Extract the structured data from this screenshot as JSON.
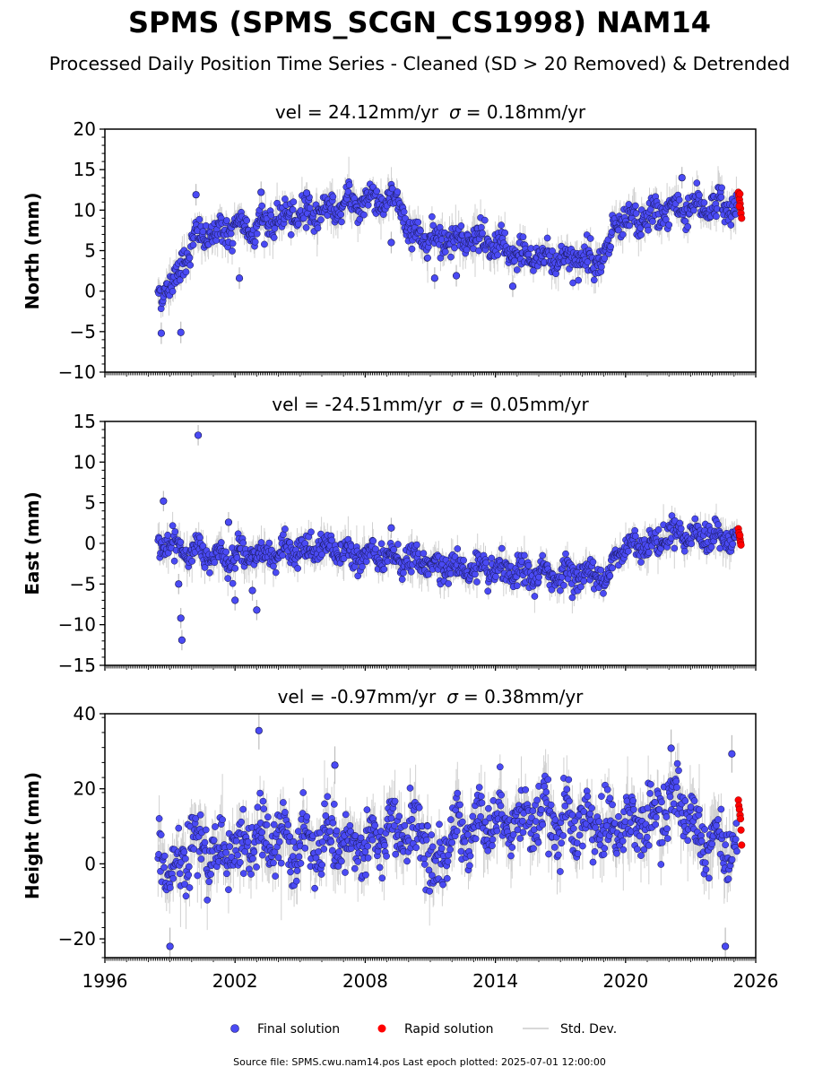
{
  "title": "SPMS (SPMS_SCGN_CS1998) NAM14",
  "subtitle": "Processed Daily Position Time Series - Cleaned (SD > 20 Removed) & Detrended",
  "legend": {
    "final": "Final solution",
    "rapid": "Rapid solution",
    "std": "Std. Dev."
  },
  "footer": "Source file: SPMS.cwu.nam14.pos  Last epoch plotted: 2025-07-01 12:00:00",
  "colors": {
    "final": "#4a4af4",
    "rapid": "#ff0000",
    "std": "#bdbdbd",
    "axis": "#000000"
  },
  "chart_data": [
    {
      "type": "scatter",
      "id": "north",
      "title_prefix": "vel = 24.12mm/yr",
      "sigma_text": "= 0.18mm/yr",
      "ylabel": "North (mm)",
      "xlim": [
        1996,
        2026
      ],
      "ylim": [
        -10,
        20
      ],
      "yticks": [
        -10,
        -5,
        0,
        5,
        10,
        15,
        20
      ],
      "xticks": [
        1996,
        2002,
        2008,
        2014,
        2020,
        2026
      ],
      "show_xticklabels": false,
      "final_series_keypoints": [
        [
          1998.5,
          0
        ],
        [
          1999.2,
          1
        ],
        [
          1999.6,
          4
        ],
        [
          2000.2,
          6.5
        ],
        [
          2001.5,
          7.5
        ],
        [
          2003,
          8
        ],
        [
          2005,
          9.5
        ],
        [
          2007,
          10.5
        ],
        [
          2008.5,
          11.5
        ],
        [
          2009.8,
          10.5
        ],
        [
          2009.9,
          7
        ],
        [
          2011.5,
          6.5
        ],
        [
          2013,
          6.5
        ],
        [
          2014,
          5.5
        ],
        [
          2015,
          4.5
        ],
        [
          2017,
          4
        ],
        [
          2019,
          4
        ],
        [
          2019.3,
          5
        ],
        [
          2019.4,
          8
        ],
        [
          2021,
          9
        ],
        [
          2022,
          10
        ],
        [
          2023,
          10.5
        ],
        [
          2025,
          10.5
        ]
      ],
      "rapid_points": [
        [
          2025.2,
          12.2
        ],
        [
          2025.22,
          11.8
        ],
        [
          2025.25,
          11.3
        ],
        [
          2025.28,
          10.8
        ],
        [
          2025.3,
          10.2
        ],
        [
          2025.32,
          9.6
        ],
        [
          2025.35,
          9.0
        ],
        [
          2025.27,
          12.0
        ],
        [
          2025.24,
          10.5
        ]
      ],
      "notable_points": [
        [
          1998.6,
          -5.2
        ],
        [
          1999.5,
          -5.1
        ],
        [
          2000.2,
          11.9
        ],
        [
          2002.2,
          1.6
        ],
        [
          2003.2,
          12.2
        ],
        [
          2005.3,
          12.1
        ],
        [
          2009.2,
          6.0
        ],
        [
          2011.2,
          1.6
        ],
        [
          2012.2,
          1.9
        ],
        [
          2014.8,
          0.6
        ],
        [
          2022.6,
          14.0
        ]
      ]
    },
    {
      "type": "scatter",
      "id": "east",
      "title_prefix": "vel = -24.51mm/yr",
      "sigma_text": "= 0.05mm/yr",
      "ylabel": "East (mm)",
      "xlim": [
        1996,
        2026
      ],
      "ylim": [
        -15,
        15
      ],
      "yticks": [
        -15,
        -10,
        -5,
        0,
        5,
        10,
        15
      ],
      "xticks": [
        1996,
        2002,
        2008,
        2014,
        2020,
        2026
      ],
      "show_xticklabels": false,
      "final_series_keypoints": [
        [
          1998.5,
          0
        ],
        [
          2000,
          -1
        ],
        [
          2002,
          -1.5
        ],
        [
          2005,
          -1
        ],
        [
          2006,
          -0.5
        ],
        [
          2008,
          -1.5
        ],
        [
          2010,
          -2
        ],
        [
          2012,
          -3
        ],
        [
          2014,
          -3.5
        ],
        [
          2016,
          -3.8
        ],
        [
          2018,
          -3.8
        ],
        [
          2019.3,
          -4
        ],
        [
          2019.5,
          -1.5
        ],
        [
          2020.5,
          0
        ],
        [
          2021.5,
          0
        ],
        [
          2022,
          1.5
        ],
        [
          2023,
          1
        ],
        [
          2025,
          0.5
        ]
      ],
      "rapid_points": [
        [
          2025.2,
          1.8
        ],
        [
          2025.22,
          1.3
        ],
        [
          2025.25,
          0.9
        ],
        [
          2025.28,
          0.5
        ],
        [
          2025.3,
          0.1
        ],
        [
          2025.32,
          -0.2
        ],
        [
          2025.27,
          1.0
        ]
      ],
      "notable_points": [
        [
          1998.7,
          5.2
        ],
        [
          1999.4,
          -5.0
        ],
        [
          1999.5,
          -9.2
        ],
        [
          1999.55,
          -11.9
        ],
        [
          2000.3,
          13.3
        ],
        [
          2001.7,
          2.6
        ],
        [
          2002.0,
          -7.0
        ],
        [
          2002.8,
          -5.8
        ],
        [
          2003.0,
          -8.2
        ],
        [
          2009.2,
          1.9
        ]
      ]
    },
    {
      "type": "scatter",
      "id": "height",
      "title_prefix": "vel = -0.97mm/yr",
      "sigma_text": "= 0.38mm/yr",
      "ylabel": "Height (mm)",
      "xlim": [
        1996,
        2026
      ],
      "ylim": [
        -25,
        40
      ],
      "yticks": [
        -20,
        0,
        20,
        40
      ],
      "xticks": [
        1996,
        2002,
        2008,
        2014,
        2020,
        2026
      ],
      "show_xticklabels": true,
      "final_series_keypoints": [
        [
          1998.5,
          6
        ],
        [
          1999,
          -5
        ],
        [
          2000,
          5
        ],
        [
          2001,
          3
        ],
        [
          2003,
          6
        ],
        [
          2005,
          5
        ],
        [
          2007,
          4
        ],
        [
          2009,
          7
        ],
        [
          2010.5,
          10
        ],
        [
          2011.2,
          -3
        ],
        [
          2012,
          8
        ],
        [
          2014,
          12
        ],
        [
          2016,
          12
        ],
        [
          2017,
          10
        ],
        [
          2019,
          10
        ],
        [
          2021,
          11
        ],
        [
          2022.5,
          18
        ],
        [
          2023.5,
          8
        ],
        [
          2025,
          5
        ]
      ],
      "rapid_points": [
        [
          2025.2,
          17
        ],
        [
          2025.22,
          15.5
        ],
        [
          2025.25,
          14.5
        ],
        [
          2025.28,
          13
        ],
        [
          2025.3,
          12
        ],
        [
          2025.32,
          9
        ],
        [
          2025.35,
          5
        ]
      ],
      "notable_points": [
        [
          1999,
          -22
        ],
        [
          2003.1,
          35.5
        ],
        [
          2006.6,
          26.3
        ],
        [
          2024.6,
          -22
        ],
        [
          2022.1,
          30.8
        ],
        [
          2024.9,
          29.3
        ]
      ]
    }
  ]
}
